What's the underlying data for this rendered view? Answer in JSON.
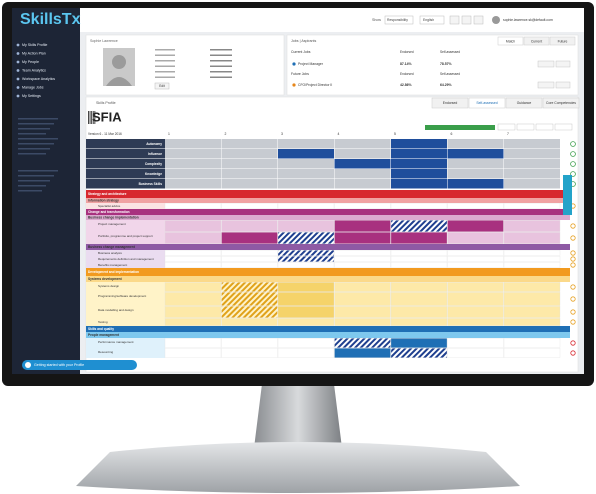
{
  "logo": "SkillsTx",
  "menu": [
    "My Skills Profile",
    "My Action Plan",
    "My People",
    "Team Analytics",
    "Workspace Analytics",
    "Manage Jobs",
    "My Settings"
  ],
  "topbar": {
    "show": "Show",
    "view": "Responsibility",
    "language": "English",
    "user": "sophie.lawrence.sk@default.com"
  },
  "profile": {
    "name": "Sophie Lawrence",
    "edit": "Edit"
  },
  "jobs": {
    "title": "Jobs | Aspirants",
    "tabs": [
      "Match",
      "Current",
      "Future"
    ],
    "current_label": "Current Jobs",
    "future_label": "Future Jobs",
    "col_endorsed": "Endorsed",
    "col_self": "Self-assessed",
    "rows": [
      {
        "name": "Project Manager",
        "endorsed": "87.14%",
        "self": "78.57%"
      },
      {
        "name": "CFO/Project Director II",
        "endorsed": "42.86%",
        "self": "64.29%"
      }
    ]
  },
  "skills": {
    "title": "Skills Profile",
    "tabs": [
      "Endorsed",
      "Self-assessed",
      "Guidance",
      "Core Competencies"
    ],
    "framework": "SFIA",
    "version": "Version 6 - 11 Mar 2016",
    "levels": [
      "1",
      "2",
      "3",
      "4",
      "5",
      "6",
      "7"
    ],
    "attributes": [
      "Autonomy",
      "Influence",
      "Complexity",
      "Knowledge",
      "Business Skills"
    ],
    "rows": [
      "Strategy and architecture",
      "Information strategy",
      "Specialist advice",
      "Change and transformation",
      "Business change implementation",
      "Project management",
      "Portfolio, programme and project support",
      "Business change management",
      "Business analysis",
      "Requirements definition and management",
      "Benefits management",
      "Development and implementation",
      "Systems development",
      "Systems design",
      "Programming/software development",
      "Data modelling and design",
      "Testing",
      "Skills and quality",
      "People management",
      "Performance management",
      "Resourcing"
    ]
  },
  "banner": "Getting started with your Profile"
}
